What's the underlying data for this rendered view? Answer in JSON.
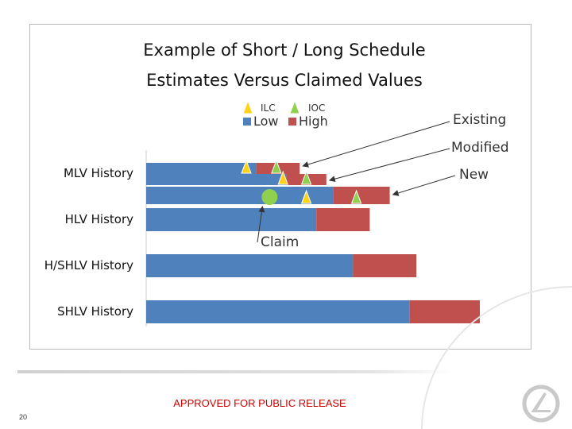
{
  "slide": {
    "footer_text": "APPROVED FOR PUBLIC RELEASE",
    "page_number": "20"
  },
  "chart_data": {
    "type": "bar",
    "orientation": "horizontal",
    "stacked": true,
    "title_lines": [
      "Example of Short / Long Schedule",
      "Estimates Versus Claimed Values"
    ],
    "legend": {
      "items": [
        {
          "label": "ILC",
          "marker": "triangle",
          "color": "#ffd21a"
        },
        {
          "label": "IOC",
          "marker": "triangle",
          "color": "#8fd14f"
        },
        {
          "label": "Low",
          "marker": "square",
          "color": "#4f81bd"
        },
        {
          "label": "High",
          "marker": "square",
          "color": "#c0504d"
        }
      ],
      "placement": "top-center"
    },
    "colors": {
      "low": "#4f81bd",
      "high": "#c0504d",
      "ilc": "#ffd21a",
      "ioc": "#8fd14f",
      "claim": "#8fd14f"
    },
    "axis": {
      "shown": false,
      "grid": false,
      "xlim": [
        0,
        100
      ]
    },
    "categories": [
      "MLV History",
      "HLV History",
      "H/SHLV History",
      "SHLV History"
    ],
    "bars": [
      {
        "category": "MLV History",
        "variant": "Existing",
        "low": 33,
        "high": 46,
        "ilc": 30,
        "ioc": 39
      },
      {
        "category": "MLV History",
        "variant": "Modified",
        "low": 42,
        "high": 54,
        "ilc": 41,
        "ioc": 48
      },
      {
        "category": "MLV History",
        "variant": "New",
        "low": 56,
        "high": 73,
        "ilc": 48,
        "ioc": 63
      },
      {
        "category": "HLV History",
        "low": 51,
        "high": 67
      },
      {
        "category": "H/SHLV History",
        "low": 62,
        "high": 81
      },
      {
        "category": "SHLV History",
        "low": 79,
        "high": 100
      }
    ],
    "claim": {
      "category": "MLV History",
      "variant": "New",
      "value": 37,
      "label": "Claim"
    },
    "callouts": [
      "Existing",
      "Modified",
      "New"
    ]
  }
}
